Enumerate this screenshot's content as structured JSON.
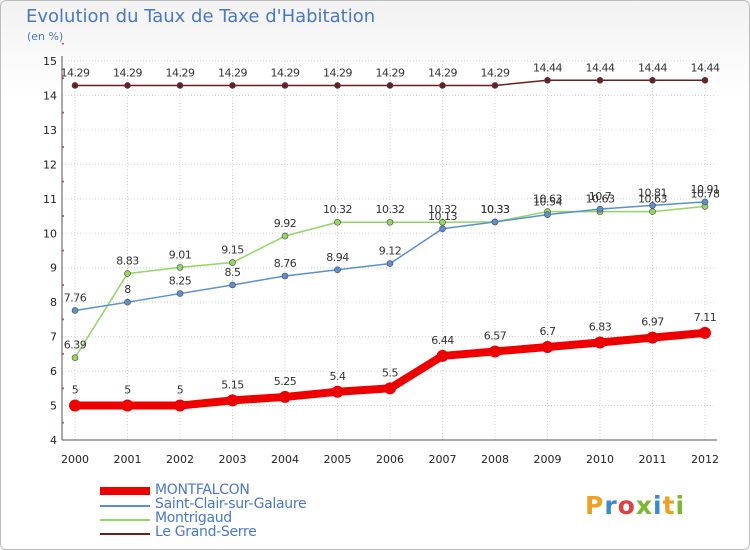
{
  "chart_data": {
    "type": "line",
    "title": "Evolution du Taux de Taxe d'Habitation",
    "unit_label": "(en %)",
    "x": [
      "2000",
      "2001",
      "2002",
      "2003",
      "2004",
      "2005",
      "2006",
      "2007",
      "2008",
      "2009",
      "2010",
      "2011",
      "2012"
    ],
    "ylim": [
      4,
      15
    ],
    "yticks": [
      "4",
      "5",
      "6",
      "7",
      "8",
      "9",
      "10",
      "11",
      "12",
      "13",
      "14",
      "15"
    ],
    "grid": true,
    "legend_position": "bottom-left",
    "series": [
      {
        "name": "Le Grand-Serre",
        "color": "#6b1f1f",
        "values": [
          14.29,
          14.29,
          14.29,
          14.29,
          14.29,
          14.29,
          14.29,
          14.29,
          14.29,
          14.44,
          14.44,
          14.44,
          14.44
        ],
        "labels": [
          "14.29",
          "14.29",
          "14.29",
          "14.29",
          "14.29",
          "14.29",
          "14.29",
          "14.29",
          "14.29",
          "14.44",
          "14.44",
          "14.44",
          "14.44"
        ]
      },
      {
        "name": "Montrigaud",
        "color": "#90d860",
        "values": [
          6.39,
          8.83,
          9.01,
          9.15,
          9.92,
          10.32,
          10.32,
          10.32,
          10.33,
          10.63,
          10.63,
          10.63,
          10.78
        ],
        "labels": [
          "6.39",
          "8.83",
          "9.01",
          "9.15",
          "9.92",
          "10.32",
          "10.32",
          "10.32",
          "10.33",
          "10.63",
          "10.63",
          "10.63",
          "10.78"
        ]
      },
      {
        "name": "Saint-Clair-sur-Galaure",
        "color": "#5a90d0",
        "values": [
          7.76,
          8,
          8.25,
          8.5,
          8.76,
          8.94,
          9.12,
          10.13,
          10.33,
          10.54,
          10.7,
          10.81,
          10.91
        ],
        "labels": [
          "7.76",
          "8",
          "8.25",
          "8.5",
          "8.76",
          "8.94",
          "9.12",
          "10.13",
          "10.33",
          "10.54",
          "10.7",
          "10.81",
          "10.91"
        ]
      },
      {
        "name": "MONTFALCON",
        "color": "#ee0000",
        "values": [
          5,
          5,
          5,
          5.15,
          5.25,
          5.4,
          5.5,
          6.44,
          6.57,
          6.7,
          6.83,
          6.97,
          7.11
        ],
        "labels": [
          "5",
          "5",
          "5",
          "5.15",
          "5.25",
          "5.4",
          "5.5",
          "6.44",
          "6.57",
          "6.7",
          "6.83",
          "6.97",
          "7.11"
        ]
      }
    ]
  },
  "legend": [
    {
      "label": "MONTFALCON",
      "color": "#ee0000"
    },
    {
      "label": "Saint-Clair-sur-Galaure",
      "color": "#5a90d0"
    },
    {
      "label": "Montrigaud",
      "color": "#90d860"
    },
    {
      "label": "Le Grand-Serre",
      "color": "#6b1f1f"
    }
  ],
  "logo": {
    "letters": [
      "P",
      "r",
      "o",
      "x",
      "i",
      "t",
      "i"
    ],
    "colors": [
      "#f0a020",
      "#3a8ad0",
      "#e04040",
      "#7ab830",
      "#3a8ad0",
      "#f0a020",
      "#7ab830"
    ]
  }
}
